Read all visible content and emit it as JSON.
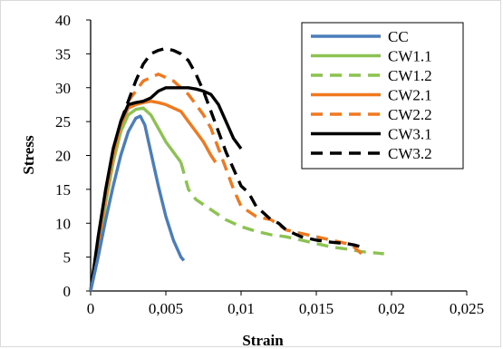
{
  "chart_data": {
    "type": "line",
    "xlabel": "Strain",
    "ylabel": "Stress",
    "xlim": [
      0,
      0.025
    ],
    "ylim": [
      0,
      40
    ],
    "x_ticks": [
      "0",
      "0,005",
      "0,01",
      "0,015",
      "0,02",
      "0,025"
    ],
    "y_ticks": [
      "0",
      "5",
      "10",
      "15",
      "20",
      "25",
      "30",
      "35",
      "40"
    ],
    "grid": false,
    "legend_position": "top-right",
    "series": [
      {
        "name": "CC",
        "color": "#4a7ebb",
        "dash": "solid",
        "points": [
          [
            0,
            0
          ],
          [
            0.0005,
            5
          ],
          [
            0.001,
            10.5
          ],
          [
            0.0015,
            15.5
          ],
          [
            0.002,
            20
          ],
          [
            0.0025,
            23.5
          ],
          [
            0.003,
            25.5
          ],
          [
            0.0033,
            25.8
          ],
          [
            0.0036,
            24.5
          ],
          [
            0.004,
            20.5
          ],
          [
            0.0045,
            15.5
          ],
          [
            0.005,
            11
          ],
          [
            0.0055,
            7.5
          ],
          [
            0.006,
            5
          ],
          [
            0.0062,
            4.5
          ]
        ]
      },
      {
        "name": "CW1.1",
        "color": "#8cc251",
        "dash": "solid",
        "points": [
          [
            0,
            0
          ],
          [
            0.0005,
            6
          ],
          [
            0.001,
            13
          ],
          [
            0.0015,
            19
          ],
          [
            0.002,
            23.5
          ],
          [
            0.0025,
            26
          ],
          [
            0.003,
            26.8
          ],
          [
            0.0035,
            27
          ],
          [
            0.004,
            26
          ],
          [
            0.0045,
            24
          ],
          [
            0.005,
            22
          ],
          [
            0.0055,
            20.5
          ],
          [
            0.006,
            19
          ]
        ]
      },
      {
        "name": "CW1.2",
        "color": "#8cc251",
        "dash": "dashed",
        "points": [
          [
            0.006,
            19
          ],
          [
            0.0065,
            15
          ],
          [
            0.007,
            13.5
          ],
          [
            0.008,
            12
          ],
          [
            0.009,
            10.5
          ],
          [
            0.01,
            9.5
          ],
          [
            0.011,
            8.8
          ],
          [
            0.012,
            8.3
          ],
          [
            0.013,
            8
          ],
          [
            0.014,
            7.5
          ],
          [
            0.015,
            7
          ],
          [
            0.016,
            6.5
          ],
          [
            0.017,
            6.2
          ],
          [
            0.018,
            5.8
          ],
          [
            0.0195,
            5.5
          ]
        ]
      },
      {
        "name": "CW2.1",
        "color": "#f07920",
        "dash": "solid",
        "points": [
          [
            0,
            0
          ],
          [
            0.0005,
            7
          ],
          [
            0.001,
            14
          ],
          [
            0.0015,
            20
          ],
          [
            0.002,
            24.5
          ],
          [
            0.0025,
            27
          ],
          [
            0.003,
            27.5
          ],
          [
            0.0035,
            27.8
          ],
          [
            0.004,
            28
          ],
          [
            0.0045,
            27.8
          ],
          [
            0.005,
            27.5
          ],
          [
            0.0055,
            27
          ],
          [
            0.006,
            26.5
          ],
          [
            0.0065,
            25
          ],
          [
            0.007,
            23.5
          ],
          [
            0.0075,
            22
          ],
          [
            0.008,
            20
          ],
          [
            0.0083,
            19
          ]
        ]
      },
      {
        "name": "CW2.2",
        "color": "#f07920",
        "dash": "dashed",
        "points": [
          [
            0.0025,
            28
          ],
          [
            0.003,
            29.5
          ],
          [
            0.0035,
            31
          ],
          [
            0.004,
            31.5
          ],
          [
            0.0045,
            32
          ],
          [
            0.005,
            31.5
          ],
          [
            0.0055,
            31
          ],
          [
            0.006,
            30
          ],
          [
            0.0065,
            29
          ],
          [
            0.007,
            27.5
          ],
          [
            0.0075,
            26
          ],
          [
            0.008,
            24
          ],
          [
            0.0085,
            21
          ],
          [
            0.009,
            18
          ],
          [
            0.0095,
            15
          ],
          [
            0.01,
            12.5
          ],
          [
            0.011,
            11
          ],
          [
            0.012,
            10.5
          ],
          [
            0.013,
            9
          ],
          [
            0.014,
            8.5
          ],
          [
            0.015,
            8
          ],
          [
            0.016,
            7.5
          ],
          [
            0.017,
            7
          ],
          [
            0.0175,
            6.5
          ],
          [
            0.018,
            5.5
          ]
        ]
      },
      {
        "name": "CW3.1",
        "color": "#000000",
        "dash": "solid",
        "points": [
          [
            0,
            0
          ],
          [
            0.0005,
            8
          ],
          [
            0.001,
            15
          ],
          [
            0.0015,
            21
          ],
          [
            0.002,
            25
          ],
          [
            0.0025,
            27.5
          ],
          [
            0.003,
            27.8
          ],
          [
            0.0035,
            28
          ],
          [
            0.004,
            28.5
          ],
          [
            0.0045,
            29.5
          ],
          [
            0.005,
            30
          ],
          [
            0.0055,
            30
          ],
          [
            0.006,
            30
          ],
          [
            0.0065,
            30
          ],
          [
            0.007,
            29.8
          ],
          [
            0.0075,
            29.5
          ],
          [
            0.008,
            29
          ],
          [
            0.0085,
            27.5
          ],
          [
            0.009,
            25
          ],
          [
            0.0095,
            22.5
          ],
          [
            0.01,
            21
          ]
        ]
      },
      {
        "name": "CW3.2",
        "color": "#000000",
        "dash": "dashed",
        "points": [
          [
            0.002,
            25
          ],
          [
            0.0025,
            28
          ],
          [
            0.003,
            31
          ],
          [
            0.0035,
            33.5
          ],
          [
            0.004,
            35
          ],
          [
            0.0045,
            35.5
          ],
          [
            0.005,
            35.8
          ],
          [
            0.0055,
            35.5
          ],
          [
            0.006,
            35
          ],
          [
            0.0065,
            34
          ],
          [
            0.007,
            32
          ],
          [
            0.0075,
            29.5
          ],
          [
            0.008,
            26.5
          ],
          [
            0.0085,
            23.5
          ],
          [
            0.009,
            20.5
          ],
          [
            0.0095,
            18
          ],
          [
            0.01,
            15.5
          ],
          [
            0.0105,
            14.5
          ],
          [
            0.011,
            12.5
          ],
          [
            0.0115,
            11.5
          ],
          [
            0.012,
            10.5
          ],
          [
            0.0125,
            10
          ],
          [
            0.013,
            9
          ],
          [
            0.0135,
            8.5
          ],
          [
            0.014,
            8
          ],
          [
            0.015,
            7.5
          ],
          [
            0.016,
            7.2
          ],
          [
            0.017,
            7
          ],
          [
            0.0175,
            6.8
          ],
          [
            0.018,
            6.5
          ]
        ]
      }
    ]
  }
}
